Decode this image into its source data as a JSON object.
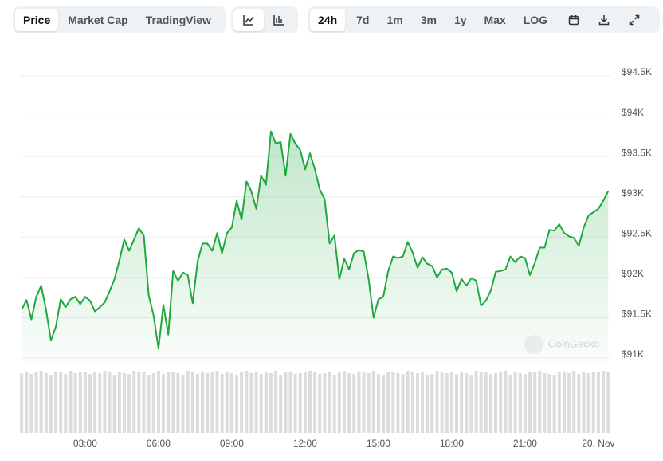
{
  "ui": {
    "tabs": [
      "Price",
      "Market Cap",
      "TradingView"
    ],
    "ranges": [
      "24h",
      "7d",
      "1m",
      "3m",
      "1y",
      "Max",
      "LOG"
    ]
  },
  "chart_data": {
    "type": "line",
    "watermark": "CoinGecko",
    "x": [
      0.4,
      0.6,
      0.8,
      1.0,
      1.2,
      1.4,
      1.6,
      1.8,
      2.0,
      2.2,
      2.4,
      2.6,
      2.8,
      3.0,
      3.2,
      3.4,
      3.6,
      3.8,
      4.0,
      4.2,
      4.4,
      4.6,
      4.8,
      5.0,
      5.2,
      5.4,
      5.6,
      5.8,
      6.0,
      6.2,
      6.4,
      6.6,
      6.8,
      7.0,
      7.2,
      7.4,
      7.6,
      7.8,
      8.0,
      8.2,
      8.4,
      8.6,
      8.8,
      9.0,
      9.2,
      9.4,
      9.6,
      9.8,
      10.0,
      10.2,
      10.4,
      10.6,
      10.8,
      11.0,
      11.2,
      11.4,
      11.6,
      11.8,
      12.0,
      12.2,
      12.4,
      12.6,
      12.8,
      13.0,
      13.2,
      13.4,
      13.6,
      13.8,
      14.0,
      14.2,
      14.4,
      14.6,
      14.8,
      15.0,
      15.2,
      15.4,
      15.6,
      15.8,
      16.0,
      16.2,
      16.4,
      16.6,
      16.8,
      17.0,
      17.2,
      17.4,
      17.6,
      17.8,
      18.0,
      18.2,
      18.4,
      18.6,
      18.8,
      19.0,
      19.2,
      19.4,
      19.6,
      19.8,
      20.0,
      20.2,
      20.4,
      20.6,
      20.8,
      21.0,
      21.2,
      21.4,
      21.6,
      21.8,
      22.0,
      22.2,
      22.4,
      22.6,
      22.8,
      23.0,
      23.2,
      23.4,
      23.6,
      23.8,
      24.0,
      24.2,
      24.4
    ],
    "series": [
      {
        "color": "#1fa83e",
        "values": [
          91600,
          91720,
          91480,
          91760,
          91900,
          91600,
          91220,
          91390,
          91730,
          91630,
          91730,
          91760,
          91670,
          91760,
          91710,
          91580,
          91630,
          91690,
          91830,
          91980,
          92210,
          92470,
          92330,
          92470,
          92610,
          92520,
          91780,
          91530,
          91120,
          91660,
          91290,
          92080,
          91960,
          92060,
          92030,
          91680,
          92200,
          92420,
          92420,
          92330,
          92550,
          92300,
          92550,
          92620,
          92950,
          92720,
          93190,
          93070,
          92850,
          93260,
          93150,
          93810,
          93660,
          93680,
          93260,
          93780,
          93660,
          93580,
          93340,
          93540,
          93340,
          93090,
          92970,
          92420,
          92520,
          91980,
          92230,
          92100,
          92300,
          92340,
          92320,
          91980,
          91500,
          91730,
          91760,
          92080,
          92260,
          92240,
          92260,
          92440,
          92310,
          92120,
          92250,
          92170,
          92140,
          92000,
          92100,
          92110,
          92060,
          91830,
          91980,
          91900,
          91990,
          91960,
          91650,
          91710,
          91840,
          92070,
          92080,
          92100,
          92260,
          92190,
          92260,
          92240,
          92030,
          92180,
          92370,
          92370,
          92590,
          92580,
          92660,
          92550,
          92510,
          92490,
          92390,
          92620,
          92770,
          92810,
          92850,
          92950,
          93070
        ]
      }
    ],
    "volume": {
      "color": "#dcdcdc",
      "values": [
        74,
        76,
        73,
        75,
        77,
        74,
        72,
        76,
        75,
        73,
        77,
        74,
        76,
        75,
        73,
        76,
        74,
        77,
        75,
        72,
        76,
        74,
        73,
        77,
        75,
        76,
        72,
        74,
        77,
        73,
        75,
        76,
        74,
        72,
        77,
        75,
        73,
        76,
        74,
        75,
        77,
        73,
        76,
        74,
        72,
        75,
        77,
        74,
        76,
        73,
        75,
        74,
        77,
        72,
        76,
        75,
        73,
        74,
        76,
        77,
        75,
        73,
        74,
        76,
        72,
        75,
        77,
        74,
        73,
        76,
        75,
        74,
        77,
        73,
        72,
        76,
        75,
        74,
        73,
        77,
        76,
        74,
        75,
        72,
        73,
        77,
        76,
        74,
        75,
        73,
        76,
        74,
        72,
        77,
        75,
        76,
        73,
        74,
        75,
        77,
        72,
        76,
        74,
        73,
        75,
        76,
        77,
        74,
        73,
        72,
        75,
        76,
        74,
        77,
        73,
        75,
        74,
        76,
        75,
        77,
        76
      ]
    },
    "xlim": [
      0.33,
      24.46
    ],
    "xticks": [
      {
        "value": 3,
        "label": "03:00"
      },
      {
        "value": 6,
        "label": "06:00"
      },
      {
        "value": 9,
        "label": "09:00"
      },
      {
        "value": 12,
        "label": "12:00"
      },
      {
        "value": 15,
        "label": "15:00"
      },
      {
        "value": 18,
        "label": "18:00"
      },
      {
        "value": 21,
        "label": "21:00"
      },
      {
        "value": 24,
        "label": "20. Nov"
      }
    ],
    "ylim": [
      90950,
      94850
    ],
    "yticks": [
      {
        "value": 91000,
        "label": "$91K"
      },
      {
        "value": 91500,
        "label": "$91.5K"
      },
      {
        "value": 92000,
        "label": "$92K"
      },
      {
        "value": 92500,
        "label": "$92.5K"
      },
      {
        "value": 93000,
        "label": "$93K"
      },
      {
        "value": 93500,
        "label": "$93.5K"
      },
      {
        "value": 94000,
        "label": "$94K"
      },
      {
        "value": 94500,
        "label": "$94.5K"
      }
    ],
    "grid": true
  }
}
